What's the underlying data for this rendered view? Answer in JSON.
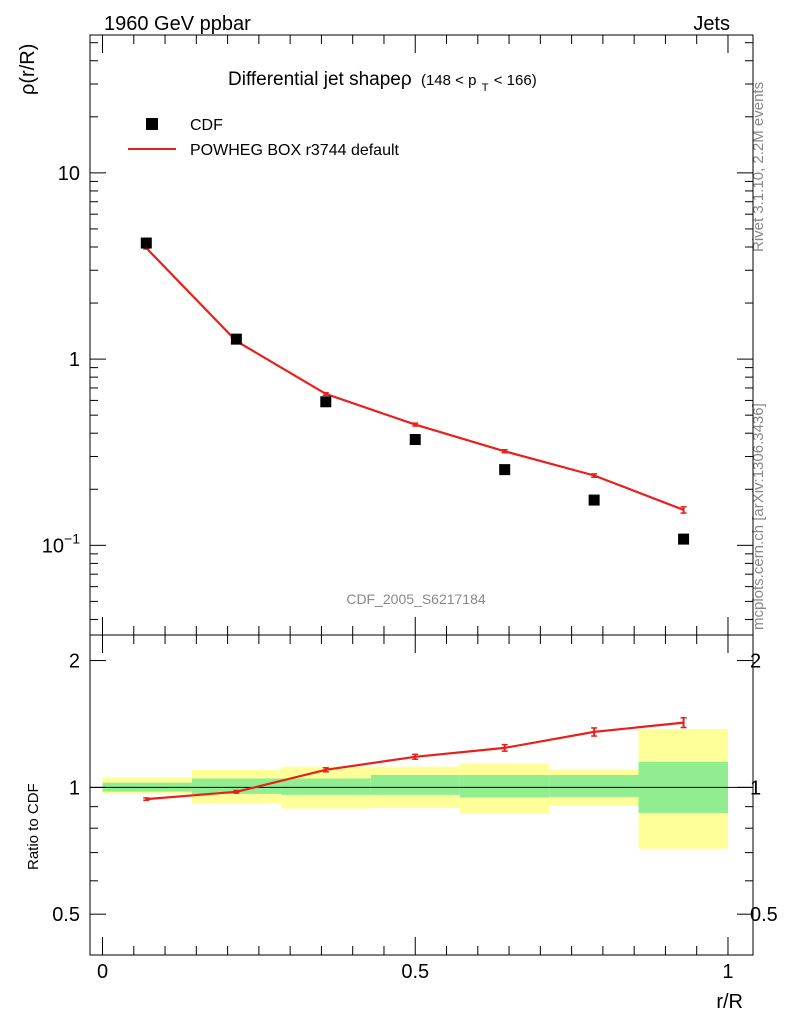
{
  "header": {
    "left_label": "1960 GeV ppbar",
    "right_label": "Jets",
    "side_label_top": "Rivet 3.1.10,  2.2M events",
    "side_label_bottom": "mcplots.cern.ch [arXiv:1306.3436]"
  },
  "colors": {
    "mc_line": "#e8201c",
    "band_inner": "#90ee90",
    "band_outer": "#ffff99",
    "data_marker": "#000000"
  },
  "chart_data": [
    {
      "type": "scatter",
      "panel": "main",
      "title_main": "Differential jet shapeρ",
      "title_range": "(148 < p",
      "title_sub": "T",
      "title_range_end": " < 166)",
      "ylabel": "ρ(r/R)",
      "xlabel": "",
      "yscale": "log",
      "xlim": [
        -0.02,
        1.04
      ],
      "ylim": [
        0.033,
        55
      ],
      "yticks": [
        {
          "value": 10,
          "label": "10"
        },
        {
          "value": 1,
          "label": "1"
        },
        {
          "value": 0.1,
          "label": "10",
          "sup": "−1"
        }
      ],
      "watermark": "CDF_2005_S6217184",
      "legend": [
        {
          "name": "CDF",
          "kind": "marker"
        },
        {
          "name": "POWHEG BOX r3744 default",
          "kind": "line"
        }
      ],
      "series": [
        {
          "name": "CDF",
          "x": [
            0.07,
            0.214,
            0.357,
            0.5,
            0.643,
            0.786,
            0.929
          ],
          "values": [
            4.2,
            1.28,
            0.59,
            0.37,
            0.255,
            0.175,
            0.108
          ]
        },
        {
          "name": "POWHEG BOX r3744 default",
          "x": [
            0.07,
            0.214,
            0.357,
            0.5,
            0.643,
            0.786,
            0.929
          ],
          "values": [
            3.95,
            1.25,
            0.65,
            0.445,
            0.32,
            0.237,
            0.155
          ],
          "errors": [
            0.05,
            0.02,
            0.01,
            0.008,
            0.006,
            0.005,
            0.006
          ]
        }
      ]
    },
    {
      "type": "line",
      "panel": "ratio",
      "ylabel": "Ratio to CDF",
      "xlabel": "r/R",
      "yscale": "log",
      "xlim": [
        -0.02,
        1.04
      ],
      "ylim": [
        0.4,
        2.3
      ],
      "yticks": [
        {
          "value": 2,
          "label": "2"
        },
        {
          "value": 1,
          "label": "1"
        },
        {
          "value": 0.5,
          "label": "0.5"
        }
      ],
      "xticks": [
        {
          "value": 0,
          "label": "0"
        },
        {
          "value": 0.5,
          "label": "0.5"
        },
        {
          "value": 1,
          "label": "1"
        }
      ],
      "bands": [
        {
          "x0": 0.0,
          "x1": 0.143,
          "inner": [
            0.977,
            1.026
          ],
          "outer": [
            0.964,
            1.055
          ]
        },
        {
          "x0": 0.143,
          "x1": 0.286,
          "inner": [
            0.965,
            1.05
          ],
          "outer": [
            0.916,
            1.1
          ]
        },
        {
          "x0": 0.286,
          "x1": 0.429,
          "inner": [
            0.96,
            1.05
          ],
          "outer": [
            0.891,
            1.12
          ]
        },
        {
          "x0": 0.429,
          "x1": 0.571,
          "inner": [
            0.96,
            1.07
          ],
          "outer": [
            0.894,
            1.12
          ]
        },
        {
          "x0": 0.571,
          "x1": 0.714,
          "inner": [
            0.946,
            1.07
          ],
          "outer": [
            0.868,
            1.14
          ]
        },
        {
          "x0": 0.714,
          "x1": 0.857,
          "inner": [
            0.949,
            1.07
          ],
          "outer": [
            0.904,
            1.1
          ]
        },
        {
          "x0": 0.857,
          "x1": 1.0,
          "inner": [
            0.87,
            1.15
          ],
          "outer": [
            0.715,
            1.375
          ]
        }
      ],
      "series": [
        {
          "name": "POWHEG BOX r3744 default",
          "x": [
            0.07,
            0.214,
            0.357,
            0.5,
            0.643,
            0.786,
            0.929
          ],
          "values": [
            0.938,
            0.976,
            1.101,
            1.182,
            1.241,
            1.354,
            1.425
          ],
          "errors": [
            0.006,
            0.007,
            0.012,
            0.016,
            0.022,
            0.03,
            0.038
          ]
        }
      ]
    }
  ]
}
